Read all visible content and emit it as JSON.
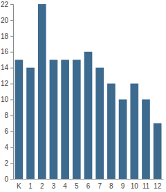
{
  "chart_data": {
    "type": "bar",
    "categories": [
      "K",
      "1",
      "2",
      "3",
      "4",
      "5",
      "6",
      "7",
      "8",
      "9",
      "10",
      "11",
      "12"
    ],
    "values": [
      15,
      14,
      22,
      15,
      15,
      15,
      16,
      14,
      12,
      10,
      12,
      10,
      7
    ],
    "color": "#3d6a8f",
    "ylim": [
      0,
      22
    ],
    "yticks": [
      0,
      2,
      4,
      6,
      8,
      10,
      12,
      14,
      16,
      18,
      20,
      22
    ],
    "grid": false
  }
}
